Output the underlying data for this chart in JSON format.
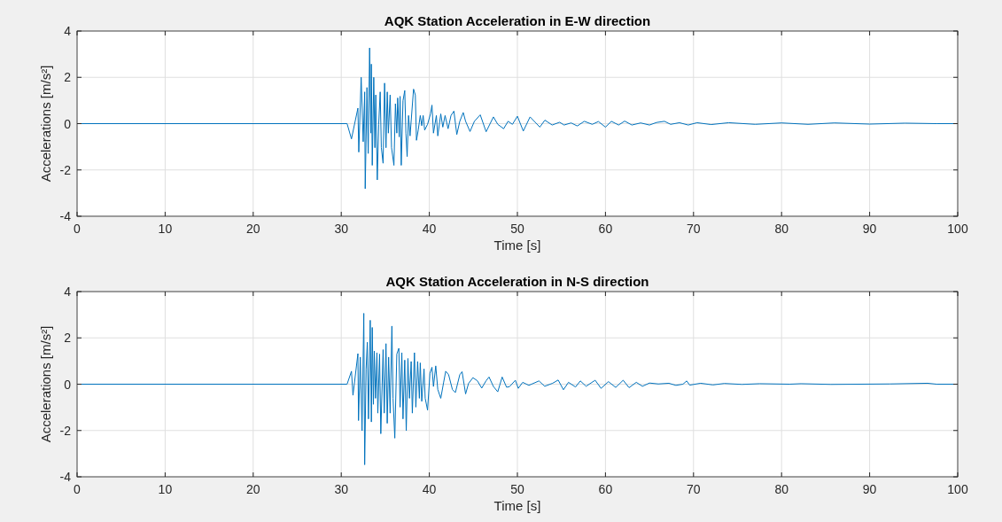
{
  "chart_data": [
    {
      "type": "line",
      "title": "AQK Station Acceleration in E-W direction",
      "xlabel": "Time [s]",
      "ylabel": "Accelerations [m/s²]",
      "xlim": [
        0,
        100
      ],
      "ylim": [
        -4,
        4
      ],
      "xticks": [
        0,
        10,
        20,
        30,
        40,
        50,
        60,
        70,
        80,
        90,
        100
      ],
      "yticks": [
        -4,
        -2,
        0,
        2,
        4
      ],
      "grid": true,
      "series": [
        {
          "color": "#0072bd",
          "x": [
            0,
            30.66,
            31.16,
            31.89,
            31.99,
            32.26,
            32.49,
            32.66,
            32.72,
            32.92,
            33.06,
            33.22,
            33.36,
            33.42,
            33.52,
            33.69,
            33.82,
            33.92,
            34.09,
            34.25,
            34.42,
            34.55,
            34.75,
            34.92,
            35.08,
            35.22,
            35.35,
            35.55,
            35.71,
            35.98,
            36.15,
            36.31,
            36.41,
            36.58,
            36.68,
            36.81,
            37.01,
            37.21,
            37.34,
            37.48,
            37.64,
            37.81,
            38.21,
            38.41,
            38.54,
            38.74,
            38.97,
            39.14,
            39.3,
            39.47,
            39.8,
            40.13,
            40.3,
            40.47,
            40.8,
            40.96,
            41.3,
            41.53,
            41.79,
            42.13,
            42.46,
            42.79,
            43.12,
            43.46,
            43.85,
            44.12,
            44.62,
            45.12,
            45.78,
            46.45,
            47.28,
            47.77,
            48.44,
            48.94,
            49.44,
            50,
            50.67,
            51.44,
            52.55,
            53.12,
            53.95,
            54.8,
            55.3,
            56.1,
            56.8,
            57.6,
            58.5,
            59.2,
            60,
            60.67,
            61.5,
            62.18,
            63,
            64,
            65,
            65.8,
            66.7,
            67.4,
            68.4,
            69.4,
            70.4,
            72,
            74,
            77,
            80,
            83,
            86,
            90,
            94,
            97.6,
            100
          ],
          "values": [
            0,
            0,
            -0.66,
            0.67,
            -1.23,
            2.0,
            -0.78,
            1.37,
            -2.81,
            1.56,
            -1.29,
            3.27,
            -0.41,
            2.57,
            -1.8,
            2.0,
            -1.04,
            1.24,
            -2.43,
            -0.03,
            1.37,
            -1.04,
            -1.71,
            1.75,
            -1.04,
            1.37,
            -0.41,
            1.24,
            -1.04,
            -1.8,
            0.86,
            -0.41,
            1.11,
            -0.57,
            1.18,
            -1.8,
            0.99,
            1.43,
            -0.41,
            -1.42,
            0.35,
            -0.53,
            1.49,
            1.24,
            -0.72,
            -0.28,
            0.35,
            -0.09,
            0.35,
            -0.28,
            -0.03,
            0.42,
            0.8,
            -0.41,
            0.35,
            -0.53,
            0.42,
            -0.15,
            0.35,
            -0.22,
            0.35,
            0.54,
            -0.47,
            0.1,
            0.48,
            0.1,
            -0.34,
            0.1,
            0.38,
            -0.35,
            0.29,
            -0.03,
            -0.22,
            0.1,
            -0.03,
            0.32,
            -0.32,
            0.29,
            -0.15,
            0.15,
            -0.06,
            0.06,
            -0.06,
            0.03,
            -0.1,
            0.1,
            -0.03,
            0.09,
            -0.15,
            0.1,
            -0.06,
            0.11,
            -0.06,
            0.03,
            -0.06,
            0.05,
            0.1,
            -0.03,
            0.04,
            -0.06,
            0.04,
            -0.04,
            0.04,
            -0.03,
            0.03,
            -0.03,
            0.03,
            -0.02,
            0.02,
            0,
            0
          ]
        }
      ]
    },
    {
      "type": "line",
      "title": "AQK Station Acceleration in N-S direction",
      "xlabel": "Time [s]",
      "ylabel": "Accelerations [m/s²]",
      "xlim": [
        0,
        100
      ],
      "ylim": [
        -4,
        4
      ],
      "xticks": [
        0,
        10,
        20,
        30,
        40,
        50,
        60,
        70,
        80,
        90,
        100
      ],
      "yticks": [
        -4,
        -2,
        0,
        2,
        4
      ],
      "grid": true,
      "series": [
        {
          "color": "#0072bd",
          "x": [
            0,
            30.66,
            31.16,
            31.33,
            31.89,
            31.96,
            32.16,
            32.36,
            32.56,
            32.66,
            32.82,
            32.96,
            33.09,
            33.29,
            33.42,
            33.52,
            33.65,
            33.75,
            33.89,
            34.05,
            34.15,
            34.35,
            34.49,
            34.75,
            34.88,
            35.08,
            35.22,
            35.38,
            35.55,
            35.75,
            35.88,
            36.08,
            36.31,
            36.54,
            36.68,
            36.88,
            37.01,
            37.21,
            37.38,
            37.57,
            37.74,
            37.94,
            38.07,
            38.31,
            38.47,
            38.67,
            38.87,
            38.97,
            39.14,
            39.4,
            39.53,
            39.8,
            40.07,
            40.3,
            40.47,
            40.73,
            40.96,
            41.3,
            41.63,
            41.86,
            42.19,
            42.62,
            42.96,
            43.46,
            43.72,
            44.12,
            44.45,
            44.95,
            45.45,
            45.95,
            46.45,
            46.78,
            47.28,
            47.77,
            48.27,
            48.77,
            49.1,
            49.77,
            50.1,
            50.6,
            51.3,
            52.45,
            53.1,
            54,
            54.63,
            55.23,
            55.8,
            56.6,
            57.15,
            57.8,
            58.83,
            59.5,
            60.34,
            61.17,
            62.01,
            62.68,
            63.5,
            64.2,
            65,
            66,
            67.2,
            68,
            68.8,
            69.23,
            69.56,
            70.8,
            72.2,
            73.5,
            75.5,
            77.5,
            80.9,
            82.2,
            85.6,
            92.3,
            96.58,
            97.6,
            100
          ],
          "values": [
            0,
            0,
            0.56,
            -0.48,
            1.32,
            -1.57,
            1.17,
            -2.01,
            3.06,
            -3.48,
            0.66,
            1.81,
            -1.5,
            2.76,
            -1.63,
            2.45,
            -0.87,
            1.43,
            -0.61,
            1.36,
            -1.25,
            1.3,
            -2.14,
            1.49,
            -1.25,
            1.75,
            -1.69,
            1.17,
            -1.25,
            2.51,
            -0.61,
            -2.33,
            1.3,
            1.55,
            -0.99,
            1.36,
            -1.5,
            1.04,
            -2.01,
            1.11,
            -0.61,
            0.98,
            -1.25,
            1.36,
            -0.99,
            0.98,
            -0.61,
            0.92,
            -0.74,
            0.66,
            -0.61,
            -1.12,
            0.47,
            0.73,
            -0.1,
            0.79,
            -0.23,
            -0.61,
            0.09,
            0.56,
            0.41,
            -0.23,
            -0.36,
            0.41,
            0.54,
            -0.42,
            0.03,
            0.28,
            0.15,
            -0.17,
            0.15,
            0.31,
            -0.1,
            -0.33,
            0.31,
            -0.13,
            -0.11,
            0.17,
            -0.18,
            0.08,
            -0.05,
            0.14,
            -0.09,
            0.04,
            0.18,
            -0.24,
            0.08,
            -0.12,
            0.14,
            -0.09,
            0.17,
            -0.18,
            0.11,
            -0.14,
            0.17,
            -0.15,
            0.08,
            -0.09,
            0.05,
            0.01,
            0.04,
            -0.05,
            0.0,
            0.14,
            -0.04,
            0.04,
            -0.03,
            0.03,
            -0.01,
            0.02,
            0.0,
            0.02,
            -0.01,
            0.01,
            0.04,
            0,
            0
          ]
        }
      ]
    }
  ]
}
